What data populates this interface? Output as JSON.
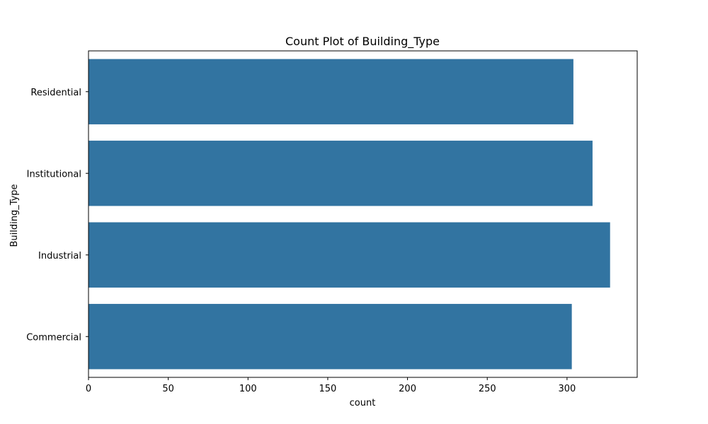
{
  "chart_data": {
    "type": "bar",
    "orientation": "horizontal",
    "title": "Count Plot of Building_Type",
    "xlabel": "count",
    "ylabel": "Building_Type",
    "categories": [
      "Residential",
      "Institutional",
      "Industrial",
      "Commercial"
    ],
    "values": [
      304,
      316,
      327,
      303
    ],
    "xlim": [
      0,
      344
    ],
    "xticks": [
      0,
      50,
      100,
      150,
      200,
      250,
      300
    ],
    "grid": false,
    "bar_color": "#3274a1"
  }
}
